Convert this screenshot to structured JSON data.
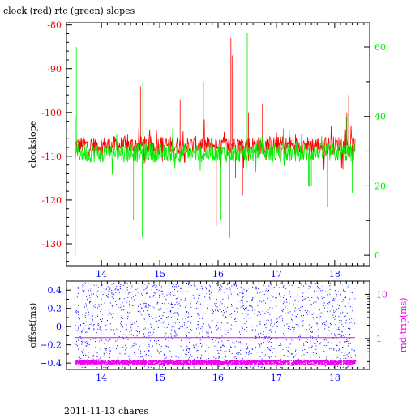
{
  "page_title": "clock (red) rtc (green) slopes",
  "footer_label": "2011-11-13 chares",
  "colors": {
    "red": "#ff0000",
    "green": "#00ee00",
    "blue": "#0000ff",
    "magenta": "#ee00ee",
    "axis": "#000000"
  },
  "chart_data": [
    {
      "type": "line",
      "title": "clock (red) rtc (green) slopes",
      "xlabel": "",
      "ylabel": "clockslope",
      "xlim": [
        13.4,
        18.6
      ],
      "ylim": [
        -135,
        -79.5
      ],
      "y2lim": [
        -3,
        67
      ],
      "x_ticks": [
        14,
        15,
        16,
        17,
        18
      ],
      "y_ticks": [
        -80,
        -90,
        -100,
        -110,
        -120,
        -130
      ],
      "y2_ticks": [
        0,
        20,
        40,
        60
      ],
      "grid": false,
      "series": [
        {
          "name": "clock",
          "color": "red",
          "axis": "left",
          "baseline": -107.5,
          "spikes": [
            {
              "x": 13.55,
              "y": -101
            },
            {
              "x": 14.67,
              "y": -94
            },
            {
              "x": 15.35,
              "y": -97
            },
            {
              "x": 15.97,
              "y": -126
            },
            {
              "x": 16.22,
              "y": -83
            },
            {
              "x": 16.24,
              "y": -87
            },
            {
              "x": 16.3,
              "y": -115
            },
            {
              "x": 16.42,
              "y": -119
            },
            {
              "x": 16.52,
              "y": -100
            },
            {
              "x": 16.76,
              "y": -98
            },
            {
              "x": 17.57,
              "y": -117
            },
            {
              "x": 18.21,
              "y": -100
            },
            {
              "x": 18.24,
              "y": -96
            },
            {
              "x": 18.3,
              "y": -112
            }
          ]
        },
        {
          "name": "rtc",
          "color": "green",
          "axis": "right",
          "baseline": 29.5,
          "spikes": [
            {
              "x": 13.55,
              "y": 0
            },
            {
              "x": 13.57,
              "y": 60
            },
            {
              "x": 14.55,
              "y": 10
            },
            {
              "x": 14.7,
              "y": 5
            },
            {
              "x": 14.71,
              "y": 50
            },
            {
              "x": 15.45,
              "y": 15
            },
            {
              "x": 15.75,
              "y": 50
            },
            {
              "x": 16.05,
              "y": 10
            },
            {
              "x": 16.2,
              "y": 5
            },
            {
              "x": 16.26,
              "y": 52
            },
            {
              "x": 16.5,
              "y": 64
            },
            {
              "x": 16.55,
              "y": 13
            },
            {
              "x": 17.55,
              "y": 20
            },
            {
              "x": 17.6,
              "y": 20
            },
            {
              "x": 17.88,
              "y": 14
            },
            {
              "x": 18.2,
              "y": 40
            },
            {
              "x": 18.3,
              "y": 18
            }
          ]
        }
      ]
    },
    {
      "type": "scatter",
      "title": "",
      "xlabel": "",
      "ylabel": "offset(ms)",
      "y2label": "rnd-trip(ms)",
      "xlim": [
        13.4,
        18.6
      ],
      "ylim": [
        -0.47,
        0.5
      ],
      "y2lim": [
        0.2,
        20
      ],
      "y2_scale": "log",
      "x_ticks": [
        14,
        15,
        16,
        17,
        18
      ],
      "y_ticks": [
        0.4,
        0.2,
        0,
        -0.2,
        -0.4
      ],
      "y_tick_labels": [
        "0.4",
        "0.2",
        "0",
        "−0.2",
        "−0.4"
      ],
      "y2_ticks": [
        10,
        1
      ],
      "grid": false,
      "series": [
        {
          "name": "offset",
          "color": "blue",
          "axis": "left",
          "range": [
            -0.45,
            0.48
          ],
          "x_range": [
            13.55,
            18.35
          ]
        },
        {
          "name": "rnd-trip",
          "color": "magenta",
          "axis": "right",
          "band": [
            0.26,
            0.32
          ],
          "x_range": [
            13.55,
            18.35
          ]
        },
        {
          "name": "rnd-trip-median",
          "color": "magenta",
          "axis": "right",
          "level": 1.05,
          "x_range": [
            13.55,
            18.35
          ]
        }
      ]
    }
  ]
}
